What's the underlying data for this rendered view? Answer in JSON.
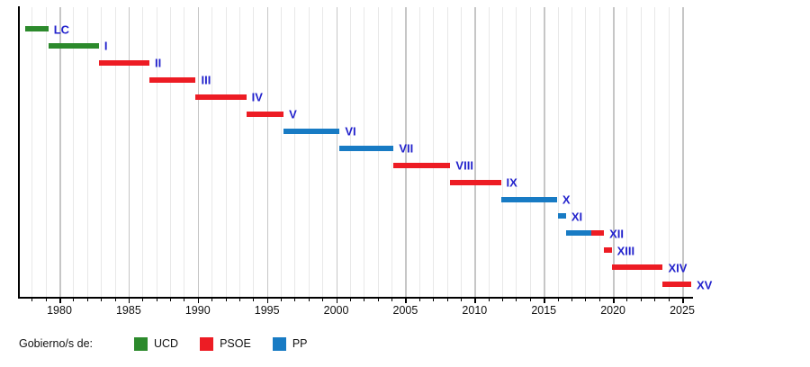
{
  "chart_data": {
    "type": "bar",
    "subtype": "gantt-timeline",
    "description_visible_text_only": true,
    "x_axis": {
      "domain": [
        1977.07,
        2025.65
      ],
      "major_tick_labels": [
        "1980",
        "1985",
        "1990",
        "1995",
        "2000",
        "2005",
        "2010",
        "2015",
        "2020",
        "2025"
      ],
      "major_tick_years": [
        1980,
        1985,
        1990,
        1995,
        2000,
        2005,
        2010,
        2015,
        2020,
        2025
      ],
      "minor_tick_step_years": 1,
      "grid": "vertical-per-year"
    },
    "parties": {
      "UCD": "#2c8a2c",
      "PSOE": "#ed1c24",
      "PP": "#187bc4"
    },
    "legislatures": [
      {
        "label": "LC",
        "segments": [
          {
            "party": "UCD",
            "start": 1977.5,
            "end": 1979.2
          }
        ]
      },
      {
        "label": "I",
        "segments": [
          {
            "party": "UCD",
            "start": 1979.2,
            "end": 1982.85
          }
        ]
      },
      {
        "label": "II",
        "segments": [
          {
            "party": "PSOE",
            "start": 1982.85,
            "end": 1986.5
          }
        ]
      },
      {
        "label": "III",
        "segments": [
          {
            "party": "PSOE",
            "start": 1986.5,
            "end": 1989.85
          }
        ]
      },
      {
        "label": "IV",
        "segments": [
          {
            "party": "PSOE",
            "start": 1989.85,
            "end": 1993.5
          }
        ]
      },
      {
        "label": "V",
        "segments": [
          {
            "party": "PSOE",
            "start": 1993.5,
            "end": 1996.2
          }
        ]
      },
      {
        "label": "VI",
        "segments": [
          {
            "party": "PP",
            "start": 1996.2,
            "end": 2000.25
          }
        ]
      },
      {
        "label": "VII",
        "segments": [
          {
            "party": "PP",
            "start": 2000.25,
            "end": 2004.15
          }
        ]
      },
      {
        "label": "VIII",
        "segments": [
          {
            "party": "PSOE",
            "start": 2004.15,
            "end": 2008.25
          }
        ]
      },
      {
        "label": "IX",
        "segments": [
          {
            "party": "PSOE",
            "start": 2008.25,
            "end": 2011.9
          }
        ]
      },
      {
        "label": "X",
        "segments": [
          {
            "party": "PP",
            "start": 2011.9,
            "end": 2015.95
          }
        ]
      },
      {
        "label": "XI",
        "segments": [
          {
            "party": "PP",
            "start": 2016.05,
            "end": 2016.6
          }
        ]
      },
      {
        "label": "XII",
        "segments": [
          {
            "party": "PP",
            "start": 2016.6,
            "end": 2018.4
          },
          {
            "party": "PSOE",
            "start": 2018.4,
            "end": 2019.35
          }
        ]
      },
      {
        "label": "XIII",
        "segments": [
          {
            "party": "PSOE",
            "start": 2019.35,
            "end": 2019.9
          }
        ]
      },
      {
        "label": "XIV",
        "segments": [
          {
            "party": "PSOE",
            "start": 2019.9,
            "end": 2023.6
          }
        ]
      },
      {
        "label": "XV",
        "segments": [
          {
            "party": "PSOE",
            "start": 2023.6,
            "end": 2025.65
          }
        ]
      }
    ]
  },
  "legend": {
    "caption": "Gobierno/s de:",
    "items": [
      {
        "label": "UCD",
        "color": "#2c8a2c"
      },
      {
        "label": "PSOE",
        "color": "#ed1c24"
      },
      {
        "label": "PP",
        "color": "#187bc4"
      }
    ]
  },
  "colors": {
    "bar_label_text": "#2222cc",
    "axis": "#000000",
    "grid_minor": "#e8e8e8",
    "grid_major": "#c6c6c6",
    "tick_text": "#111111"
  }
}
